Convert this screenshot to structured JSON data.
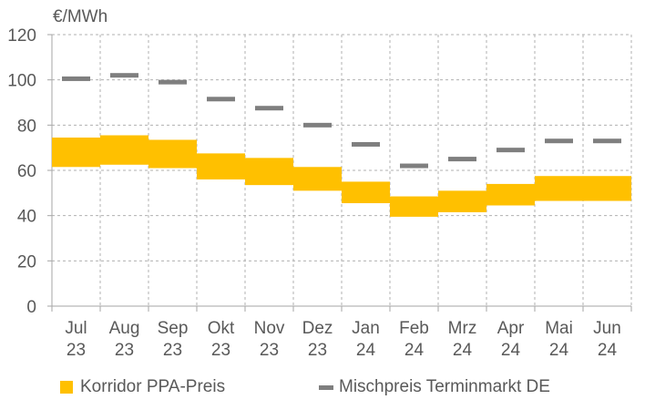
{
  "chart_data": {
    "type": "floating-bar-with-markers",
    "y_unit_label": "€/MWh",
    "ylim": [
      0,
      120
    ],
    "y_ticks": [
      0,
      20,
      40,
      60,
      80,
      100,
      120
    ],
    "grid": true,
    "legend_position": "bottom",
    "categories": [
      {
        "month": "Jul",
        "year": "23"
      },
      {
        "month": "Aug",
        "year": "23"
      },
      {
        "month": "Sep",
        "year": "23"
      },
      {
        "month": "Okt",
        "year": "23"
      },
      {
        "month": "Nov",
        "year": "23"
      },
      {
        "month": "Dez",
        "year": "23"
      },
      {
        "month": "Jan",
        "year": "24"
      },
      {
        "month": "Feb",
        "year": "24"
      },
      {
        "month": "Mrz",
        "year": "24"
      },
      {
        "month": "Apr",
        "year": "24"
      },
      {
        "month": "Mai",
        "year": "24"
      },
      {
        "month": "Jun",
        "year": "24"
      }
    ],
    "series": [
      {
        "name": "Korridor PPA-Preis",
        "kind": "range",
        "color": "#ffc000",
        "low": [
          61.5,
          62.5,
          61,
          56,
          53.5,
          51,
          45.5,
          39.5,
          41.5,
          44.5,
          46.5,
          46.5
        ],
        "high": [
          74.5,
          75.5,
          73.5,
          67.5,
          65.5,
          61.5,
          55,
          48.5,
          51,
          54,
          57.5,
          57.5
        ]
      },
      {
        "name": "Mischpreis Terminmarkt DE",
        "kind": "marker",
        "color": "#7f7f7f",
        "values": [
          100.5,
          102,
          99,
          91.5,
          87.5,
          80,
          71.5,
          62,
          65,
          69,
          73,
          73
        ]
      }
    ]
  }
}
